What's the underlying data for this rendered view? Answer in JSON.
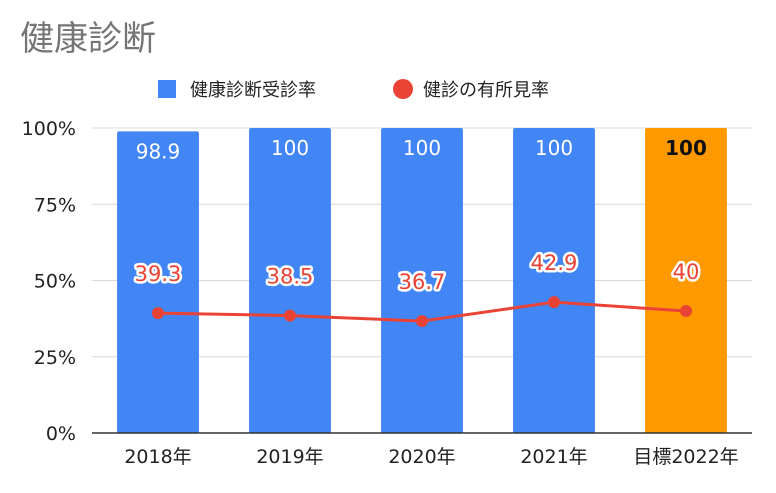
{
  "chart_data": {
    "type": "bar",
    "title": "健康診断",
    "categories": [
      "2018年",
      "2019年",
      "2020年",
      "2021年",
      "目標2022年"
    ],
    "ylim": [
      0,
      100
    ],
    "y_ticks": [
      0,
      25,
      50,
      75,
      100
    ],
    "y_tick_labels": [
      "0%",
      "25%",
      "50%",
      "75%",
      "100%"
    ],
    "grid": true,
    "legend_position": "top",
    "series": [
      {
        "name": "健康診断受診率",
        "type": "bar",
        "color": "#4285f4",
        "values": [
          98.9,
          100,
          100,
          100,
          100
        ],
        "labels": [
          "98.9",
          "100",
          "100",
          "100",
          "100"
        ],
        "point_colors": [
          "#4285f4",
          "#4285f4",
          "#4285f4",
          "#4285f4",
          "#ff9900"
        ]
      },
      {
        "name": "健診の有所見率",
        "type": "line",
        "color": "#ea4335",
        "values": [
          39.3,
          38.5,
          36.7,
          42.9,
          40
        ],
        "labels": [
          "39.3",
          "38.5",
          "36.7",
          "42.9",
          "40"
        ]
      }
    ]
  }
}
